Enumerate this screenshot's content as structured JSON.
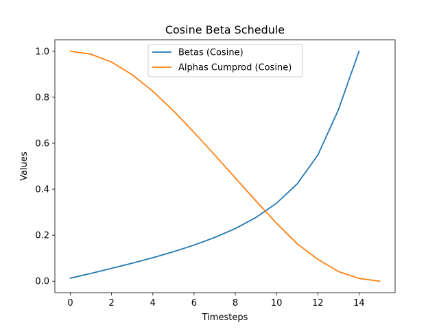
{
  "chart_data": {
    "type": "line",
    "title": "Cosine Beta Schedule",
    "xlabel": "Timesteps",
    "ylabel": "Values",
    "xlim": [
      -0.75,
      15.75
    ],
    "ylim": [
      -0.05,
      1.05
    ],
    "xticks": [
      0,
      2,
      4,
      6,
      8,
      10,
      12,
      14
    ],
    "yticks": [
      0.0,
      0.2,
      0.4,
      0.6,
      0.8,
      1.0
    ],
    "xtick_labels": [
      "0",
      "2",
      "4",
      "6",
      "8",
      "10",
      "12",
      "14"
    ],
    "ytick_labels": [
      "0.0",
      "0.2",
      "0.4",
      "0.6",
      "0.8",
      "1.0"
    ],
    "grid": false,
    "legend_position": "top-center",
    "series": [
      {
        "name": "Betas (Cosine)",
        "color": "#1f77b4",
        "x": [
          0,
          1,
          2,
          3,
          4,
          5,
          6,
          7,
          8,
          9,
          10,
          11,
          12,
          13,
          14
        ],
        "values": [
          0.013,
          0.034,
          0.056,
          0.078,
          0.102,
          0.128,
          0.157,
          0.19,
          0.229,
          0.277,
          0.339,
          0.423,
          0.548,
          0.745,
          1.0
        ]
      },
      {
        "name": "Alphas Cumprod (Cosine)",
        "color": "#ff7f0e",
        "x": [
          0,
          1,
          2,
          3,
          4,
          5,
          6,
          7,
          8,
          9,
          10,
          11,
          12,
          13,
          14,
          15
        ],
        "values": [
          1.0,
          0.987,
          0.953,
          0.898,
          0.826,
          0.741,
          0.647,
          0.549,
          0.449,
          0.349,
          0.252,
          0.163,
          0.095,
          0.042,
          0.012,
          0.0
        ]
      }
    ]
  }
}
